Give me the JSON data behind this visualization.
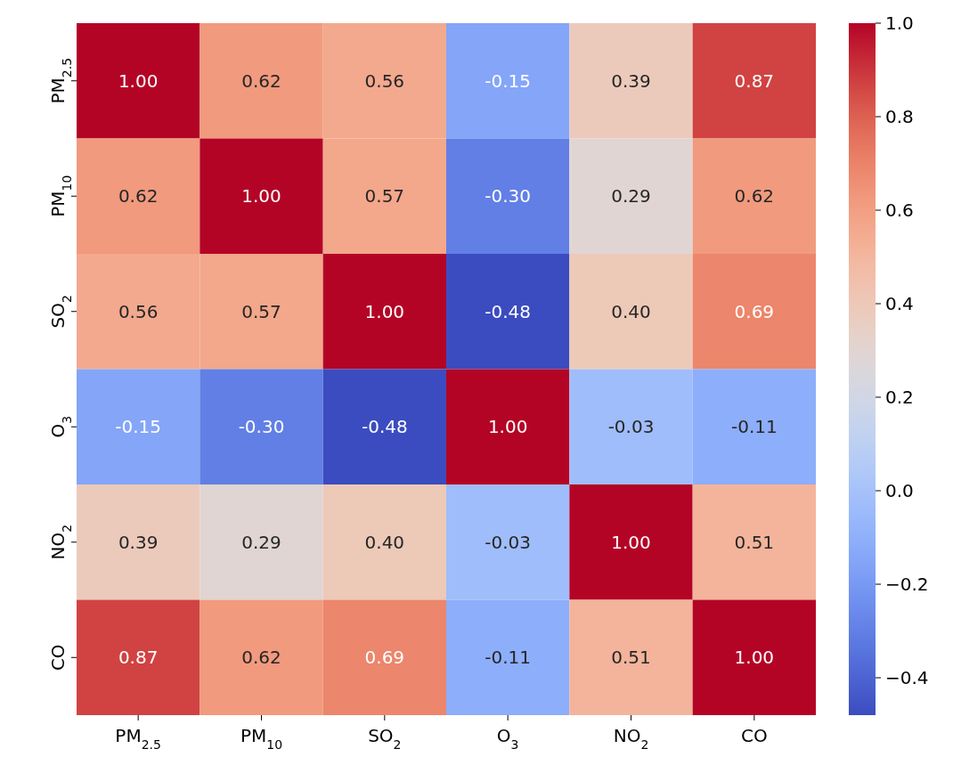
{
  "chart_data": {
    "type": "heatmap",
    "categories": [
      "PM$_{2.5}$",
      "PM$_{10}$",
      "SO$_{2}$",
      "O$_{3}$",
      "NO$_{2}$",
      "CO"
    ],
    "y_categories": [
      "PM$_{2.5}$",
      "PM$_{10}$",
      "SO$_{2}$",
      "O$_{3}$",
      "NO$_{2}$",
      "CO"
    ],
    "cells": [
      [
        1.0,
        0.62,
        0.56,
        -0.15,
        0.39,
        0.87
      ],
      [
        0.62,
        1.0,
        0.57,
        -0.3,
        0.29,
        0.62
      ],
      [
        0.56,
        0.57,
        1.0,
        -0.48,
        0.4,
        0.69
      ],
      [
        -0.15,
        -0.3,
        -0.48,
        1.0,
        -0.03,
        -0.11
      ],
      [
        0.39,
        0.29,
        0.4,
        -0.03,
        1.0,
        0.51
      ],
      [
        0.87,
        0.62,
        0.69,
        -0.11,
        0.51,
        1.0
      ]
    ],
    "cell_labels": [
      [
        "1.00",
        "0.62",
        "0.56",
        "-0.15",
        "0.39",
        "0.87"
      ],
      [
        "0.62",
        "1.00",
        "0.57",
        "-0.30",
        "0.29",
        "0.62"
      ],
      [
        "0.56",
        "0.57",
        "1.00",
        "-0.48",
        "0.40",
        "0.69"
      ],
      [
        "-0.15",
        "-0.30",
        "-0.48",
        "1.00",
        "-0.03",
        "-0.11"
      ],
      [
        "0.39",
        "0.29",
        "0.40",
        "-0.03",
        "1.00",
        "0.51"
      ],
      [
        "0.87",
        "0.62",
        "0.69",
        "-0.11",
        "0.51",
        "1.00"
      ]
    ],
    "clim": [
      -0.48,
      1.0
    ],
    "cticks": [
      {
        "value": -0.4,
        "label": "−0.4"
      },
      {
        "value": -0.2,
        "label": "−0.2"
      },
      {
        "value": 0.0,
        "label": "0.0"
      },
      {
        "value": 0.2,
        "label": "0.2"
      },
      {
        "value": 0.4,
        "label": "0.4"
      },
      {
        "value": 0.6,
        "label": "0.6"
      },
      {
        "value": 0.8,
        "label": "0.8"
      },
      {
        "value": 1.0,
        "label": "1.0"
      }
    ]
  }
}
